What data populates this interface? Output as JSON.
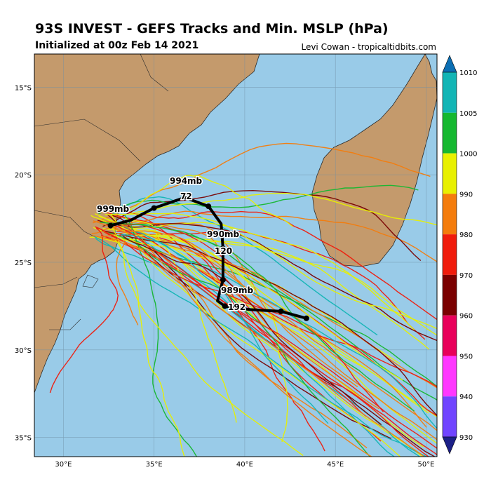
{
  "header": {
    "title": "93S INVEST - GEFS Tracks and Min. MSLP (hPa)",
    "subtitle": "Initialized at 00z Feb 14 2021",
    "credit": "Levi Cowan - tropicaltidbits.com"
  },
  "axes": {
    "lat_labels": [
      "15°S",
      "20°S",
      "25°S",
      "30°S",
      "35°S"
    ],
    "lon_labels": [
      "30°E",
      "35°E",
      "40°E",
      "45°E",
      "50°E"
    ],
    "lat_values": [
      -15,
      -20,
      -25,
      -30,
      -35
    ],
    "lon_values": [
      30,
      35,
      40,
      45,
      50
    ],
    "lon_range": [
      28.4,
      50.6
    ],
    "lat_range": [
      -36.1,
      -13.1
    ]
  },
  "colorbar": {
    "labels": [
      "1010",
      "1005",
      "1000",
      "990",
      "980",
      "970",
      "960",
      "950",
      "940",
      "930"
    ],
    "colors": [
      "#0c6fb4",
      "#12b5b5",
      "#16b830",
      "#e8f000",
      "#f47c0c",
      "#f01c0c",
      "#7a0000",
      "#e8005a",
      "#ff38ff",
      "#7044ff",
      "#1c2088"
    ]
  },
  "mean_track_labels": {
    "start": "999mb",
    "t72_pressure": "994mb",
    "t72_hour": "72",
    "t120_pressure": "990mb",
    "t120_hour": "120",
    "t192_pressure": "989mb",
    "t192_hour": "192"
  },
  "chart_data": {
    "type": "map",
    "region": "Mozambique Channel / Madagascar",
    "mean_track": {
      "lon": [
        32.6,
        33.7,
        35.0,
        36.7,
        38.0,
        38.7,
        38.8,
        38.8,
        38.8,
        38.5,
        38.9,
        40.3,
        42.0,
        43.4
      ],
      "lat": [
        -22.9,
        -22.6,
        -21.9,
        -21.3,
        -21.8,
        -22.8,
        -24.2,
        -25.6,
        -26.0,
        -27.2,
        -27.5,
        -27.7,
        -27.8,
        -28.2
      ],
      "pressure_labels": [
        {
          "text": "999mb",
          "lon": 32.6,
          "lat": -22.9
        },
        {
          "text": "994mb",
          "lon": 36.7,
          "lat": -21.3
        },
        {
          "text": "990mb",
          "lon": 38.8,
          "lat": -24.2
        },
        {
          "text": "989mb",
          "lon": 38.5,
          "lat": -27.2
        }
      ]
    },
    "colorbar_range_hpa": [
      930,
      1010
    ]
  }
}
